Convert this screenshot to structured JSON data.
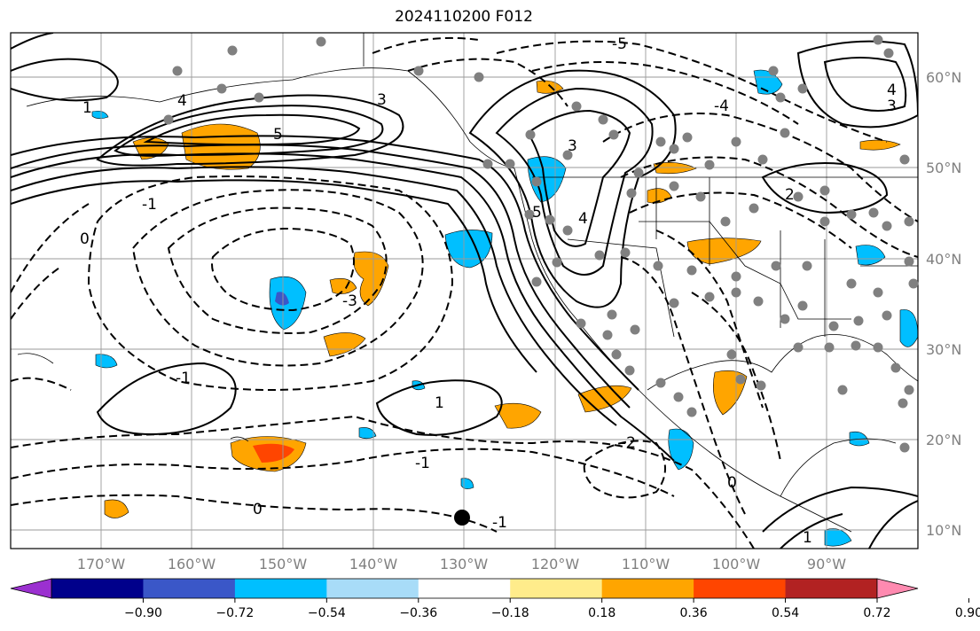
{
  "title": "2024110200 F012",
  "map": {
    "projection": "plate-carree",
    "lon_range": [
      -180,
      -80
    ],
    "lat_range": [
      8,
      65
    ],
    "longitude_labels": [
      "170°W",
      "160°W",
      "150°W",
      "140°W",
      "130°W",
      "120°W",
      "110°W",
      "100°W",
      "90°W"
    ],
    "latitude_labels": [
      "60°N",
      "50°N",
      "40°N",
      "30°N",
      "20°N",
      "10°N"
    ],
    "grid": true,
    "label_color": "#808080"
  },
  "colorbar": {
    "orientation": "horizontal",
    "extend": "both",
    "tick_labels": [
      "−0.90",
      "−0.72",
      "−0.54",
      "−0.36",
      "−0.18",
      "0.18",
      "0.36",
      "0.54",
      "0.72",
      "0.90"
    ],
    "colors": [
      "#9b30d0",
      "#00008b",
      "#3a57c8",
      "#00bfff",
      "#a8dcf8",
      "#ffffff",
      "#ffec8b",
      "#ffa500",
      "#ff4500",
      "#b22222",
      "#ff8ab0"
    ]
  },
  "contour_labels": [
    "5",
    "4",
    "3",
    "2",
    "1",
    "0",
    "-1",
    "-2",
    "-3",
    "-4",
    "-5",
    "1",
    "2",
    "3",
    "4",
    "0",
    "-1",
    "-2"
  ],
  "marker_color": "#000000",
  "station_dot_color": "#808080"
}
